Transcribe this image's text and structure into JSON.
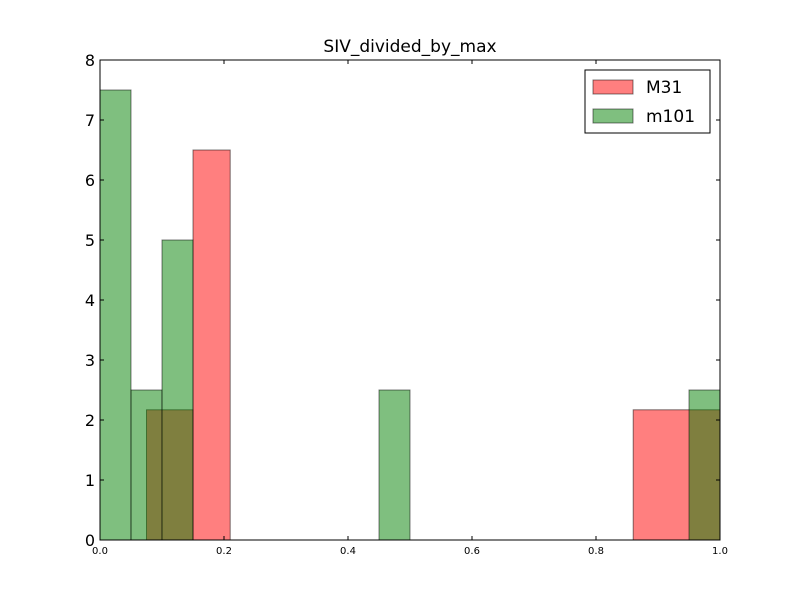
{
  "chart_data": {
    "type": "bar",
    "title": "SIV_divided_by_max",
    "xlabel": "",
    "ylabel": "",
    "xlim": [
      0.0,
      1.0
    ],
    "ylim": [
      0,
      8
    ],
    "x_ticks": [
      "0.0",
      "0.2",
      "0.4",
      "0.6",
      "0.8",
      "1.0"
    ],
    "y_ticks": [
      "0",
      "1",
      "2",
      "3",
      "4",
      "5",
      "6",
      "7",
      "8"
    ],
    "grid": false,
    "legend_position": "top-right",
    "series": [
      {
        "name": "M31",
        "color": "#ff0000",
        "alpha": 0.5,
        "bins": [
          {
            "x0": 0.075,
            "x1": 0.15,
            "value": 2.17
          },
          {
            "x0": 0.15,
            "x1": 0.21,
            "value": 6.5
          },
          {
            "x0": 0.86,
            "x1": 1.0,
            "value": 2.17
          }
        ]
      },
      {
        "name": "m101",
        "color": "#008000",
        "alpha": 0.5,
        "bins": [
          {
            "x0": 0.0,
            "x1": 0.05,
            "value": 7.5
          },
          {
            "x0": 0.05,
            "x1": 0.1,
            "value": 2.5
          },
          {
            "x0": 0.1,
            "x1": 0.15,
            "value": 5.0
          },
          {
            "x0": 0.45,
            "x1": 0.5,
            "value": 2.5
          },
          {
            "x0": 0.95,
            "x1": 1.0,
            "value": 2.5
          }
        ]
      }
    ]
  }
}
